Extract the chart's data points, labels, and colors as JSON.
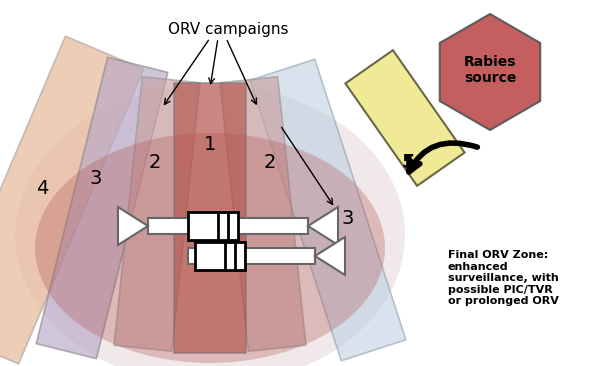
{
  "bg_color": "#ffffff",
  "fig_width": 6.0,
  "fig_height": 3.66,
  "dpi": 100,
  "orv_label": "ORV campaigns",
  "final_orv_text": "Final ORV Zone:\nenhanced\nsurveillance, with\npossible PIC/TVR\nor prolonged ORV",
  "rabies_source_text": "Rabies\nsource",
  "colors": {
    "zone1": "#b5534a",
    "zone2": "#c8a0a0",
    "zone3_left": "#b8a8c8",
    "zone3_right": "#c0b0d0",
    "zone4": "#e8b898",
    "zone5_rect": "#eee888",
    "ellipse_inner": "#b05050",
    "ellipse_outer": "#d4a0a0",
    "ellipse_bg": "#d8c0c0",
    "rabies_hex": "#c05050",
    "light_blue": "#b8cce0",
    "light_blue2": "#c8d8e8"
  }
}
